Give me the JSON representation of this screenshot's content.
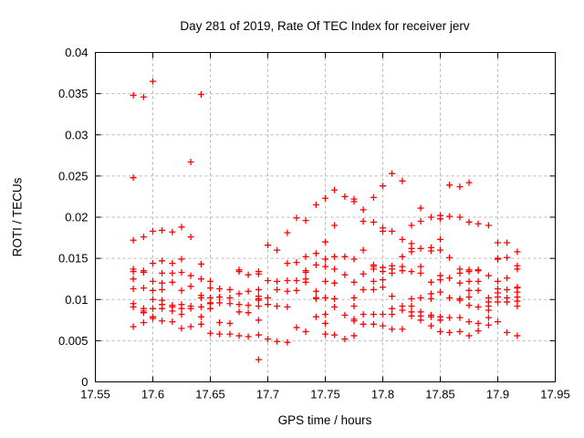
{
  "title": "Day 281 of 2019, Rate Of TEC Index for receiver jerv",
  "colors": {
    "marker": "#ff0000",
    "grid": "#b8b8b8",
    "frame": "#000000",
    "background": "#ffffff"
  },
  "chart_data": {
    "type": "scatter",
    "title": "Day 281 of 2019, Rate Of TEC Index for receiver jerv",
    "xlabel": "GPS time / hours",
    "ylabel": "ROTI / TECUs",
    "xlim": [
      17.55,
      17.95
    ],
    "ylim": [
      0,
      0.04
    ],
    "xtick_values": [
      17.55,
      17.6,
      17.65,
      17.7,
      17.75,
      17.8,
      17.85,
      17.9,
      17.95
    ],
    "xtick_labels": [
      "17.55",
      "17.6",
      "17.65",
      "17.7",
      "17.75",
      "17.8",
      "17.85",
      "17.9",
      "17.95"
    ],
    "ytick_values": [
      0,
      0.005,
      0.01,
      0.015,
      0.02,
      0.025,
      0.03,
      0.035,
      0.04
    ],
    "ytick_labels": [
      "0",
      "0.005",
      "0.01",
      "0.015",
      "0.02",
      "0.025",
      "0.03",
      "0.035",
      "0.04"
    ],
    "grid": true,
    "legend": "none",
    "marker": {
      "shape": "plus",
      "color": "#ff0000",
      "size": 7
    },
    "series": [
      {
        "name": "ROTI",
        "epochs": [
          [
            17.583,
            [
              0.0348,
              0.0248,
              0.0172,
              0.0137,
              0.0134,
              0.0125,
              0.0113,
              0.0095,
              0.0091,
              0.0067
            ]
          ],
          [
            17.592,
            [
              0.0346,
              0.0176,
              0.0135,
              0.0133,
              0.0114,
              0.0089,
              0.0086,
              0.0084,
              0.0072
            ]
          ],
          [
            17.6,
            [
              0.0365,
              0.0183,
              0.0144,
              0.0122,
              0.0111,
              0.01,
              0.0089,
              0.0079,
              0.0077
            ]
          ],
          [
            17.608,
            [
              0.0184,
              0.0147,
              0.0132,
              0.012,
              0.0112,
              0.0099,
              0.0094,
              0.0089,
              0.0074
            ]
          ],
          [
            17.617,
            [
              0.0182,
              0.0144,
              0.0132,
              0.0121,
              0.0093,
              0.0091,
              0.0086,
              0.0073
            ]
          ],
          [
            17.625,
            [
              0.0188,
              0.0149,
              0.0133,
              0.0111,
              0.0094,
              0.0089,
              0.0082,
              0.0065
            ]
          ],
          [
            17.633,
            [
              0.0267,
              0.0176,
              0.0129,
              0.0116,
              0.0092,
              0.0089,
              0.0067
            ]
          ],
          [
            17.642,
            [
              0.0349,
              0.0143,
              0.0125,
              0.0105,
              0.0102,
              0.0091,
              0.0079,
              0.007
            ]
          ],
          [
            17.65,
            [
              0.0122,
              0.0114,
              0.0102,
              0.0096,
              0.0095,
              0.0089,
              0.0059
            ]
          ],
          [
            17.658,
            [
              0.0113,
              0.0103,
              0.0096,
              0.0072,
              0.0058
            ]
          ],
          [
            17.667,
            [
              0.0112,
              0.0102,
              0.0095,
              0.0071,
              0.0058
            ]
          ],
          [
            17.675,
            [
              0.0136,
              0.0134,
              0.0107,
              0.0094,
              0.0085,
              0.0056
            ]
          ],
          [
            17.683,
            [
              0.013,
              0.011,
              0.0093,
              0.0084,
              0.0055
            ]
          ],
          [
            17.692,
            [
              0.0134,
              0.0131,
              0.0112,
              0.0104,
              0.0101,
              0.0099,
              0.0092,
              0.0075,
              0.0057,
              0.0027
            ]
          ],
          [
            17.7,
            [
              0.0166,
              0.0123,
              0.0102,
              0.0094,
              0.0052
            ]
          ],
          [
            17.708,
            [
              0.016,
              0.0122,
              0.0112,
              0.0092,
              0.0049
            ]
          ],
          [
            17.717,
            [
              0.0181,
              0.0144,
              0.0123,
              0.011,
              0.0091,
              0.0048
            ]
          ],
          [
            17.725,
            [
              0.0199,
              0.0145,
              0.0123,
              0.0111,
              0.0066
            ]
          ],
          [
            17.733,
            [
              0.0196,
              0.0152,
              0.0135,
              0.0133,
              0.0125,
              0.0121,
              0.0061
            ]
          ],
          [
            17.742,
            [
              0.0215,
              0.0156,
              0.0142,
              0.011,
              0.0102,
              0.0101,
              0.0079
            ]
          ],
          [
            17.75,
            [
              0.0223,
              0.017,
              0.0149,
              0.014,
              0.0122,
              0.0102,
              0.0082,
              0.0071,
              0.0058
            ]
          ],
          [
            17.758,
            [
              0.0233,
              0.019,
              0.0152,
              0.0137,
              0.012,
              0.0101,
              0.0091,
              0.0057
            ]
          ],
          [
            17.767,
            [
              0.0225,
              0.0152,
              0.013,
              0.0081,
              0.0052
            ]
          ],
          [
            17.775,
            [
              0.0222,
              0.0219,
              0.0149,
              0.0121,
              0.0102,
              0.0092,
              0.0076,
              0.0074,
              0.0056
            ]
          ],
          [
            17.783,
            [
              0.0209,
              0.0195,
              0.016,
              0.0131,
              0.0112,
              0.0082,
              0.007
            ]
          ],
          [
            17.792,
            [
              0.0224,
              0.0194,
              0.0142,
              0.014,
              0.0137,
              0.0122,
              0.0112,
              0.0082,
              0.007
            ]
          ],
          [
            17.8,
            [
              0.0238,
              0.0187,
              0.0183,
              0.0139,
              0.0134,
              0.0124,
              0.0115,
              0.0082,
              0.0068
            ]
          ],
          [
            17.808,
            [
              0.0253,
              0.0183,
              0.0141,
              0.0137,
              0.0132,
              0.0104,
              0.0089,
              0.0082,
              0.0064
            ]
          ],
          [
            17.817,
            [
              0.0244,
              0.0173,
              0.0152,
              0.014,
              0.0135,
              0.0092,
              0.0087,
              0.0064
            ]
          ],
          [
            17.825,
            [
              0.019,
              0.0168,
              0.0162,
              0.0158,
              0.0134,
              0.0101,
              0.0092,
              0.0085,
              0.008
            ]
          ],
          [
            17.833,
            [
              0.0211,
              0.0195,
              0.0162,
              0.014,
              0.0132,
              0.0102,
              0.0085,
              0.008,
              0.0075
            ]
          ],
          [
            17.842,
            [
              0.02,
              0.0163,
              0.0159,
              0.0121,
              0.0107,
              0.0101,
              0.0081,
              0.0079,
              0.0068
            ]
          ],
          [
            17.85,
            [
              0.0202,
              0.0198,
              0.0173,
              0.016,
              0.0129,
              0.0124,
              0.0109,
              0.0079,
              0.0075,
              0.0061
            ]
          ],
          [
            17.858,
            [
              0.0239,
              0.0201,
              0.0151,
              0.0126,
              0.0102,
              0.0078,
              0.006
            ]
          ],
          [
            17.867,
            [
              0.0237,
              0.02,
              0.0137,
              0.0132,
              0.012,
              0.0101,
              0.0099,
              0.0078,
              0.0061
            ]
          ],
          [
            17.875,
            [
              0.0242,
              0.0194,
              0.0136,
              0.0134,
              0.0122,
              0.0111,
              0.0103,
              0.0093,
              0.0073,
              0.0056
            ]
          ],
          [
            17.883,
            [
              0.0192,
              0.0136,
              0.0135,
              0.0122,
              0.0111,
              0.0091,
              0.0071,
              0.0062
            ]
          ],
          [
            17.892,
            [
              0.019,
              0.0129,
              0.0102,
              0.0097,
              0.0092,
              0.0087,
              0.0078,
              0.0069
            ]
          ],
          [
            17.9,
            [
              0.0169,
              0.015,
              0.0149,
              0.0122,
              0.0113,
              0.0108,
              0.0103,
              0.0097,
              0.0073
            ]
          ],
          [
            17.908,
            [
              0.0169,
              0.0151,
              0.0126,
              0.0112,
              0.0102,
              0.0097,
              0.006
            ]
          ],
          [
            17.917,
            [
              0.0158,
              0.0141,
              0.0137,
              0.0115,
              0.0114,
              0.0109,
              0.0103,
              0.0098,
              0.0092,
              0.0056
            ]
          ]
        ]
      }
    ]
  }
}
